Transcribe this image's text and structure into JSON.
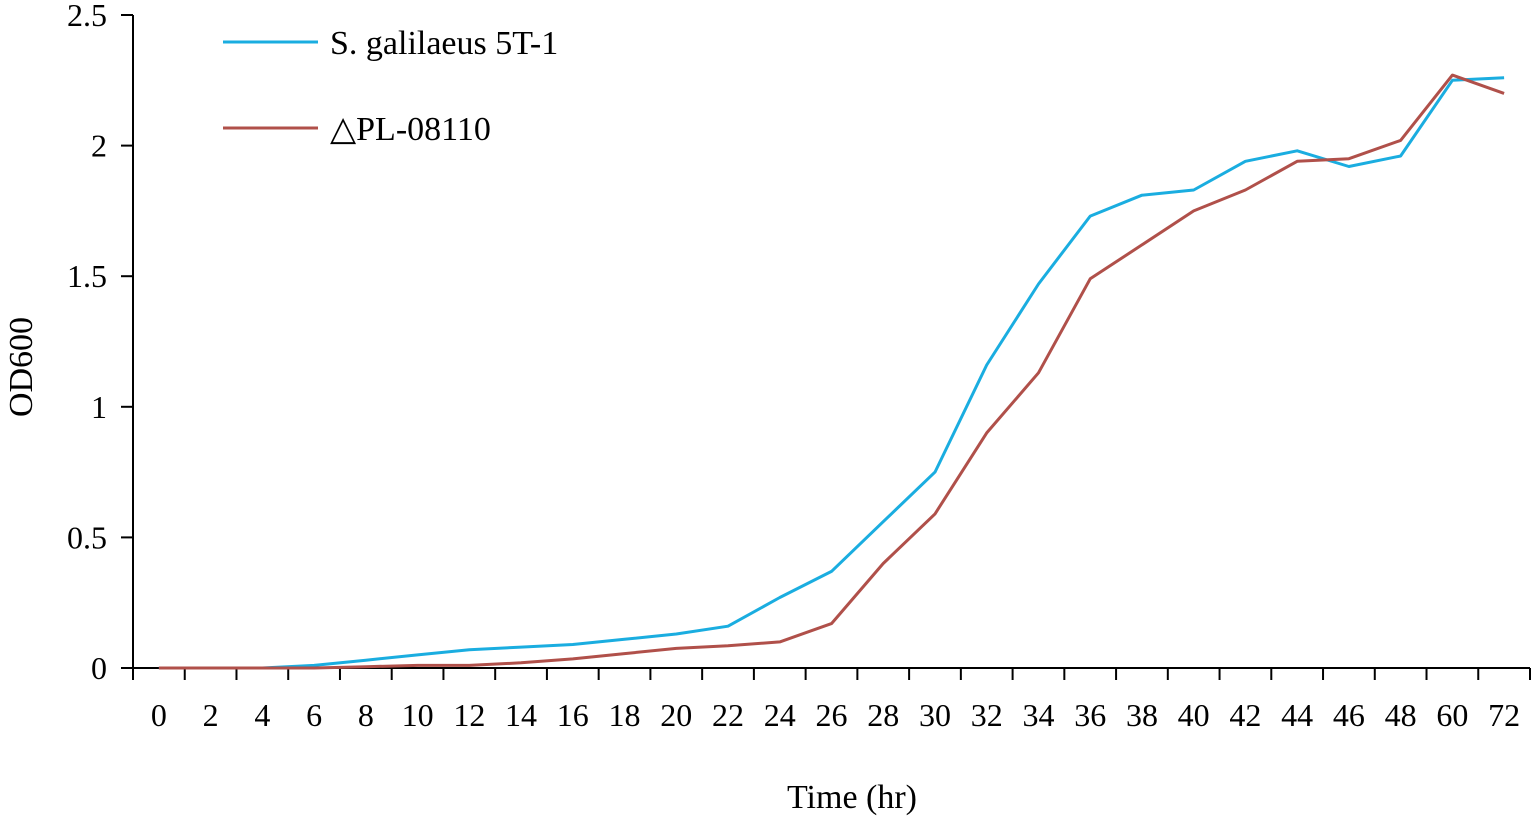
{
  "chart_data": {
    "type": "line",
    "title": "",
    "xlabel": "Time (hr)",
    "ylabel": "OD600",
    "categories": [
      "0",
      "2",
      "4",
      "6",
      "8",
      "10",
      "12",
      "14",
      "16",
      "18",
      "20",
      "22",
      "24",
      "26",
      "28",
      "30",
      "32",
      "34",
      "36",
      "38",
      "40",
      "42",
      "44",
      "46",
      "48",
      "60",
      "72"
    ],
    "ylim": [
      0,
      2.5
    ],
    "yticks": [
      0,
      0.5,
      1,
      1.5,
      2,
      2.5
    ],
    "ytick_labels": [
      "0",
      "0.5",
      "1",
      "1.5",
      "2",
      "2.5"
    ],
    "grid": false,
    "legend_position": "top-left",
    "series": [
      {
        "name": "S. galilaeus 5T-1",
        "color": "#1AADE0",
        "values": [
          0,
          0,
          0,
          0.01,
          0.03,
          0.05,
          0.07,
          0.08,
          0.09,
          0.11,
          0.13,
          0.16,
          0.27,
          0.37,
          0.56,
          0.75,
          1.16,
          1.47,
          1.73,
          1.81,
          1.83,
          1.94,
          1.98,
          1.92,
          1.96,
          2.25,
          2.26
        ]
      },
      {
        "name": "△PL-08110",
        "color": "#B0504A",
        "values": [
          0,
          0,
          0,
          0,
          0.005,
          0.01,
          0.01,
          0.02,
          0.035,
          0.055,
          0.075,
          0.085,
          0.1,
          0.17,
          0.4,
          0.59,
          0.9,
          1.13,
          1.49,
          1.62,
          1.75,
          1.83,
          1.94,
          1.95,
          2.02,
          2.27,
          2.2
        ]
      }
    ]
  }
}
